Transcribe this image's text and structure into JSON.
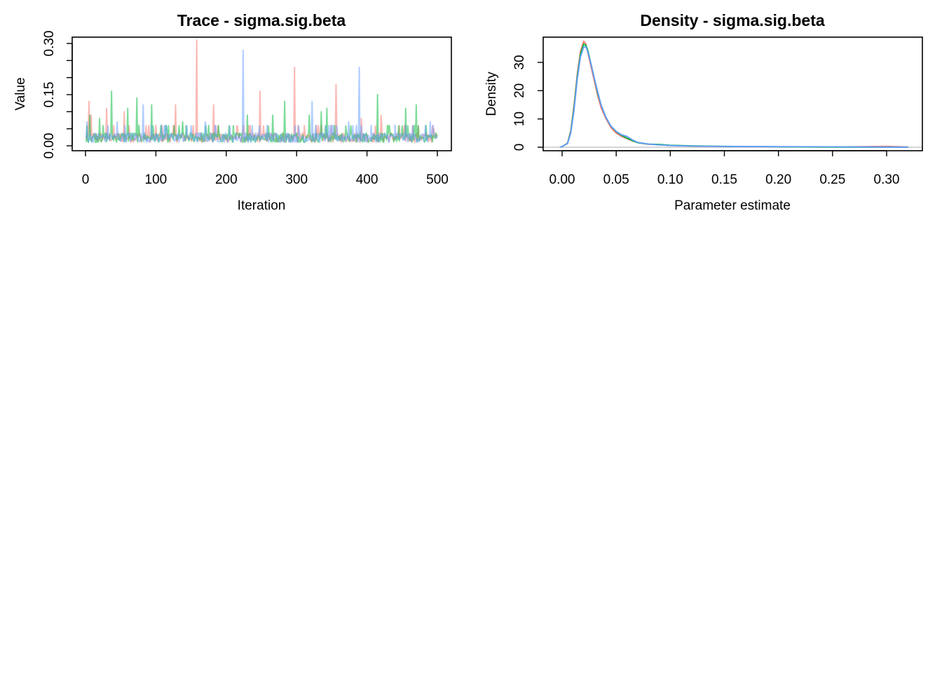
{
  "chart_data": [
    {
      "type": "line",
      "title": "Trace - sigma.sig.beta",
      "xlabel": "Iteration",
      "ylabel": "Value",
      "xlim": [
        0,
        500
      ],
      "ylim": [
        0.0,
        0.3
      ],
      "x_ticks": [
        "0",
        "100",
        "200",
        "300",
        "400",
        "500"
      ],
      "y_ticks": [
        "0.00",
        "0.15",
        "0.30"
      ],
      "grid": false,
      "line_opacity": 0.5,
      "n_iterations": 500,
      "series": [
        {
          "color": "#F8766D",
          "baseline": 0.025,
          "spikes": [
            [
              5,
              0.13
            ],
            [
              8,
              0.09
            ],
            [
              30,
              0.11
            ],
            [
              55,
              0.1
            ],
            [
              90,
              0.06
            ],
            [
              128,
              0.12
            ],
            [
              158,
              0.31
            ],
            [
              182,
              0.12
            ],
            [
              248,
              0.16
            ],
            [
              297,
              0.23
            ],
            [
              356,
              0.18
            ],
            [
              392,
              0.08
            ],
            [
              420,
              0.09
            ],
            [
              465,
              0.06
            ],
            [
              495,
              0.05
            ]
          ]
        },
        {
          "color": "#00BA38",
          "baseline": 0.025,
          "spikes": [
            [
              6,
              0.09
            ],
            [
              20,
              0.08
            ],
            [
              37,
              0.16
            ],
            [
              60,
              0.11
            ],
            [
              73,
              0.14
            ],
            [
              94,
              0.12
            ],
            [
              138,
              0.07
            ],
            [
              175,
              0.06
            ],
            [
              230,
              0.09
            ],
            [
              266,
              0.09
            ],
            [
              283,
              0.13
            ],
            [
              318,
              0.09
            ],
            [
              335,
              0.1
            ],
            [
              343,
              0.11
            ],
            [
              415,
              0.15
            ],
            [
              455,
              0.11
            ],
            [
              470,
              0.12
            ],
            [
              500,
              0.03
            ]
          ]
        },
        {
          "color": "#619CFF",
          "baseline": 0.025,
          "spikes": [
            [
              2,
              0.07
            ],
            [
              45,
              0.07
            ],
            [
              82,
              0.12
            ],
            [
              108,
              0.06
            ],
            [
              170,
              0.07
            ],
            [
              224,
              0.28
            ],
            [
              258,
              0.06
            ],
            [
              322,
              0.13
            ],
            [
              374,
              0.07
            ],
            [
              389,
              0.23
            ],
            [
              440,
              0.06
            ],
            [
              490,
              0.07
            ]
          ]
        }
      ]
    },
    {
      "type": "line",
      "title": "Density - sigma.sig.beta",
      "xlabel": "Parameter estimate",
      "ylabel": "Density",
      "xlim": [
        0.0,
        0.32
      ],
      "ylim": [
        0,
        37
      ],
      "x_ticks": [
        "0.00",
        "0.05",
        "0.10",
        "0.15",
        "0.20",
        "0.25",
        "0.30"
      ],
      "y_ticks": [
        "0",
        "10",
        "20",
        "30"
      ],
      "grid": false,
      "reference_line": 0,
      "x": [
        -0.002,
        0.0,
        0.005,
        0.008,
        0.011,
        0.014,
        0.017,
        0.02,
        0.022,
        0.024,
        0.027,
        0.03,
        0.033,
        0.036,
        0.04,
        0.045,
        0.05,
        0.055,
        0.06,
        0.065,
        0.07,
        0.08,
        0.09,
        0.1,
        0.12,
        0.15,
        0.2,
        0.25,
        0.3,
        0.32
      ],
      "series": [
        {
          "color": "#F8766D",
          "values": [
            0.1,
            0.2,
            1.5,
            6,
            15,
            26,
            34,
            37.5,
            36.5,
            33,
            28,
            23,
            18,
            14,
            10.5,
            7,
            5,
            3.8,
            3,
            2.2,
            1.6,
            1.0,
            0.9,
            0.6,
            0.4,
            0.25,
            0.15,
            0.1,
            0.3,
            0.1
          ]
        },
        {
          "color": "#00BA38",
          "values": [
            0.1,
            0.2,
            1.4,
            5.5,
            14,
            25,
            33,
            36.5,
            36,
            34,
            29,
            24,
            19,
            15,
            11,
            7.5,
            5.5,
            4.2,
            3.2,
            2.3,
            1.6,
            1.1,
            1.0,
            0.7,
            0.5,
            0.3,
            0.15,
            0.05,
            0.02,
            0.0
          ]
        },
        {
          "color": "#619CFF",
          "values": [
            0.1,
            0.2,
            1.3,
            5,
            13,
            24,
            32,
            35.5,
            35.5,
            33.5,
            29,
            24,
            19.5,
            15,
            11,
            7.5,
            5.6,
            4.4,
            3.8,
            2.6,
            1.7,
            1.1,
            0.8,
            0.6,
            0.4,
            0.3,
            0.2,
            0.15,
            0.05,
            0.0
          ]
        }
      ]
    }
  ]
}
